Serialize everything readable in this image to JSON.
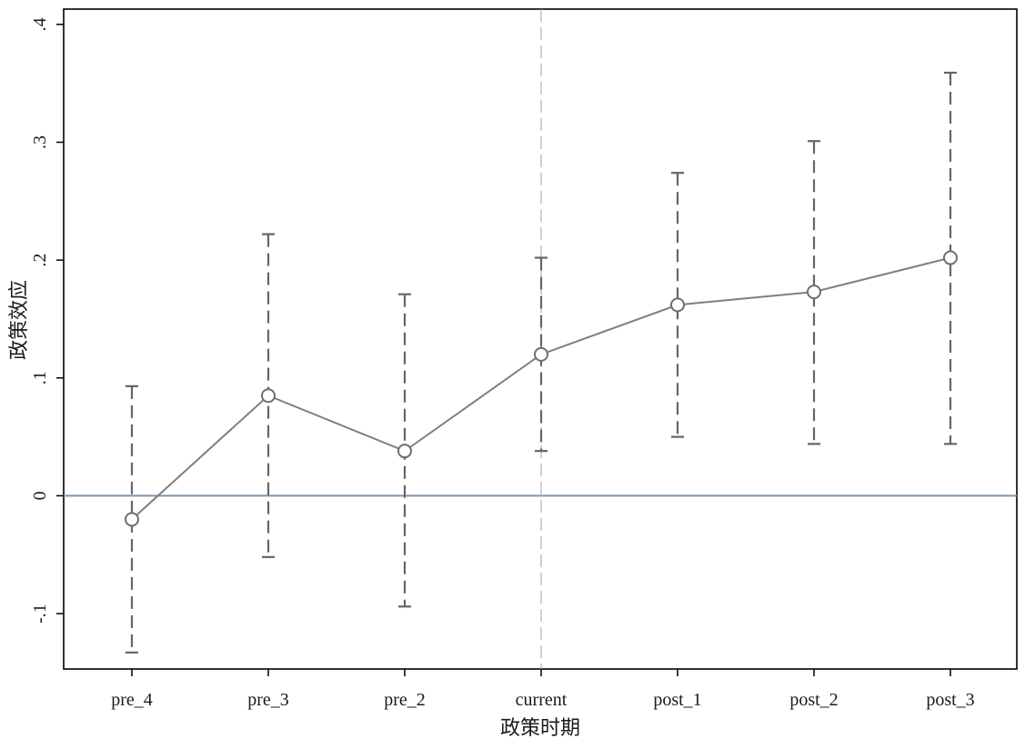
{
  "chart_data": {
    "type": "line",
    "xlabel": "政策时期",
    "ylabel": "政策效应",
    "categories": [
      "pre_4",
      "pre_3",
      "pre_2",
      "current",
      "post_1",
      "post_2",
      "post_3"
    ],
    "series": [
      {
        "values": [
          -0.02,
          0.085,
          0.038,
          0.12,
          0.162,
          0.173,
          0.202
        ],
        "ci_lower": [
          -0.133,
          -0.052,
          -0.094,
          0.038,
          0.05,
          0.044,
          0.044
        ],
        "ci_upper": [
          0.093,
          0.222,
          0.171,
          0.202,
          0.274,
          0.301,
          0.359
        ],
        "marker": "hollow-circle",
        "color": "#7f7f7f"
      }
    ],
    "yticks": [
      -0.1,
      0,
      0.1,
      0.2,
      0.3,
      0.4
    ],
    "ytick_labels": [
      "-.1",
      "0",
      ".1",
      ".2",
      ".3",
      ".4"
    ],
    "ylim": [
      -0.147,
      0.413
    ],
    "reference_lines": {
      "horizontal_y": 0,
      "horizontal_color": "#7d95ad",
      "vertical_at_category": "current",
      "vertical_color": "#b0b0b0"
    },
    "grid": false,
    "legend": "none"
  }
}
